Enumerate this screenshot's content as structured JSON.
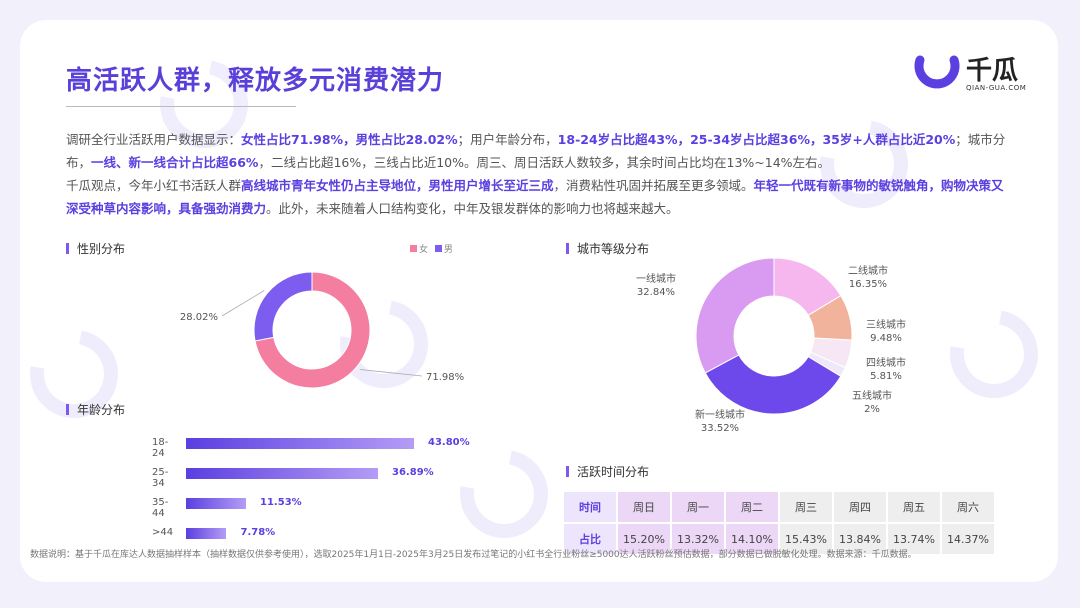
{
  "header": {
    "title": "高活跃人群，释放多元消费潜力",
    "logo_text": "千瓜",
    "logo_sub": "QIAN-GUA.COM"
  },
  "paragraph1": [
    {
      "t": "调研全行业活跃用户数据显示：",
      "h": false
    },
    {
      "t": "女性占比71.98%，男性占比28.02%",
      "h": true
    },
    {
      "t": "；用户年龄分布，",
      "h": false
    },
    {
      "t": "18-24岁占比超43%，25-34岁占比超36%，35岁+人群占比近20%",
      "h": true
    },
    {
      "t": "；城市分布，",
      "h": false
    },
    {
      "t": "一线、新一线合计占比超66%",
      "h": true
    },
    {
      "t": "，二线占比超16%，三线占比近10%。周三、周日活跃人数较多，其余时间占比均在13%~14%左右。",
      "h": false
    }
  ],
  "paragraph2": [
    {
      "t": "千瓜观点，今年小红书活跃人群",
      "h": false
    },
    {
      "t": "高线城市青年女性仍占主导地位，男性用户增长至近三成",
      "h": true
    },
    {
      "t": "，消费粘性巩固并拓展至更多领域。",
      "h": false
    },
    {
      "t": "年轻一代既有新事物的敏锐触角，购物决策又深受种草内容影响，具备强劲消费力",
      "h": true
    },
    {
      "t": "。此外，未来随着人口结构变化，中年及银发群体的影响力也将越来越大。",
      "h": false
    }
  ],
  "sections": {
    "gender": "性别分布",
    "age": "年龄分布",
    "city": "城市等级分布",
    "active": "活跃时间分布"
  },
  "colors": {
    "female": "#f47ea0",
    "male": "#7d5cf0",
    "accent": "#5b3fe0"
  },
  "chart_data": [
    {
      "type": "pie",
      "name": "gender",
      "legend": [
        "女",
        "男"
      ],
      "slices": [
        {
          "label": "女",
          "value": 71.98,
          "text": "71.98%",
          "color": "#f47ea0"
        },
        {
          "label": "男",
          "value": 28.02,
          "text": "28.02%",
          "color": "#7d5cf0"
        }
      ]
    },
    {
      "type": "bar",
      "name": "age",
      "categories": [
        "18-24",
        "25-34",
        "35-44",
        ">44"
      ],
      "values": [
        43.8,
        36.89,
        11.53,
        7.78
      ],
      "value_texts": [
        "43.80%",
        "36.89%",
        "11.53%",
        "7.78%"
      ]
    },
    {
      "type": "pie",
      "name": "city",
      "slices": [
        {
          "label": "二线城市",
          "value": 16.35,
          "text": "16.35%",
          "color": "#f6b7ee"
        },
        {
          "label": "三线城市",
          "value": 9.48,
          "text": "9.48%",
          "color": "#f2b39c"
        },
        {
          "label": "四线城市",
          "value": 5.81,
          "text": "5.81%",
          "color": "#f7e6f3"
        },
        {
          "label": "五线城市",
          "value": 2,
          "text": "2%",
          "color": "#efe8fa"
        },
        {
          "label": "新一线城市",
          "value": 33.52,
          "text": "33.52%",
          "color": "#6d48ea"
        },
        {
          "label": "一线城市",
          "value": 32.84,
          "text": "32.84%",
          "color": "#d99af2"
        }
      ]
    },
    {
      "type": "table",
      "name": "active_time",
      "row_header": "时间",
      "value_header": "占比",
      "columns": [
        "周日",
        "周一",
        "周二",
        "周三",
        "周四",
        "周五",
        "周六"
      ],
      "values": [
        "15.20%",
        "13.32%",
        "14.10%",
        "15.43%",
        "13.84%",
        "13.74%",
        "14.37%"
      ]
    }
  ],
  "footnote": "数据说明：基于千瓜在库达人数据抽样样本（抽样数据仅供参考使用），选取2025年1月1日-2025年3月25日发布过笔记的小红书全行业粉丝≥5000达人活跃粉丝预估数据，部分数据已做脱敏化处理。数据来源：千瓜数据。"
}
